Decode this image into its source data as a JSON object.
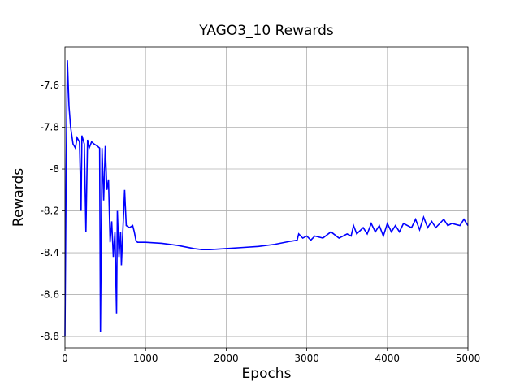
{
  "chart_data": {
    "type": "line",
    "title": "YAGO3_10 Rewards",
    "x_label": "Epochs",
    "y_label": "Rewards",
    "x": [
      0,
      15,
      30,
      50,
      70,
      100,
      130,
      150,
      180,
      200,
      210,
      240,
      260,
      280,
      300,
      330,
      360,
      400,
      430,
      440,
      460,
      480,
      500,
      520,
      540,
      560,
      580,
      600,
      620,
      640,
      650,
      670,
      690,
      700,
      720,
      740,
      760,
      800,
      840,
      860,
      880,
      900,
      1000,
      1200,
      1400,
      1600,
      1700,
      1800,
      2000,
      2200,
      2400,
      2600,
      2800,
      2880,
      2900,
      2950,
      3000,
      3050,
      3100,
      3200,
      3300,
      3400,
      3500,
      3550,
      3580,
      3620,
      3700,
      3750,
      3800,
      3850,
      3900,
      3950,
      4000,
      4050,
      4100,
      4150,
      4200,
      4300,
      4350,
      4400,
      4450,
      4500,
      4550,
      4600,
      4700,
      4750,
      4800,
      4900,
      4950,
      5000
    ],
    "series": [
      {
        "name": "Rewards",
        "color": "#0000ff",
        "values": [
          -8.8,
          -8.0,
          -7.48,
          -7.7,
          -7.8,
          -7.88,
          -7.9,
          -7.85,
          -7.87,
          -8.2,
          -7.84,
          -7.88,
          -8.3,
          -7.86,
          -7.9,
          -7.87,
          -7.88,
          -7.89,
          -7.9,
          -8.78,
          -7.9,
          -8.15,
          -7.89,
          -8.1,
          -8.05,
          -8.35,
          -8.25,
          -8.42,
          -8.3,
          -8.69,
          -8.2,
          -8.42,
          -8.3,
          -8.46,
          -8.28,
          -8.1,
          -8.27,
          -8.28,
          -8.27,
          -8.3,
          -8.34,
          -8.35,
          -8.35,
          -8.355,
          -8.365,
          -8.38,
          -8.385,
          -8.385,
          -8.38,
          -8.375,
          -8.37,
          -8.36,
          -8.345,
          -8.34,
          -8.31,
          -8.33,
          -8.32,
          -8.34,
          -8.32,
          -8.33,
          -8.3,
          -8.33,
          -8.31,
          -8.32,
          -8.27,
          -8.31,
          -8.28,
          -8.31,
          -8.26,
          -8.3,
          -8.27,
          -8.32,
          -8.26,
          -8.3,
          -8.27,
          -8.3,
          -8.26,
          -8.28,
          -8.24,
          -8.29,
          -8.23,
          -8.28,
          -8.25,
          -8.28,
          -8.24,
          -8.27,
          -8.26,
          -8.27,
          -8.24,
          -8.27
        ]
      }
    ],
    "xlim": [
      0,
      5000
    ],
    "xticks": [
      0,
      1000,
      2000,
      3000,
      4000,
      5000
    ],
    "ylim": [
      -8.854,
      -7.4175
    ],
    "yticks": [
      -7.6,
      -7.8,
      -8.0,
      -8.2,
      -8.4,
      -8.6,
      -8.8
    ],
    "grid": true
  }
}
